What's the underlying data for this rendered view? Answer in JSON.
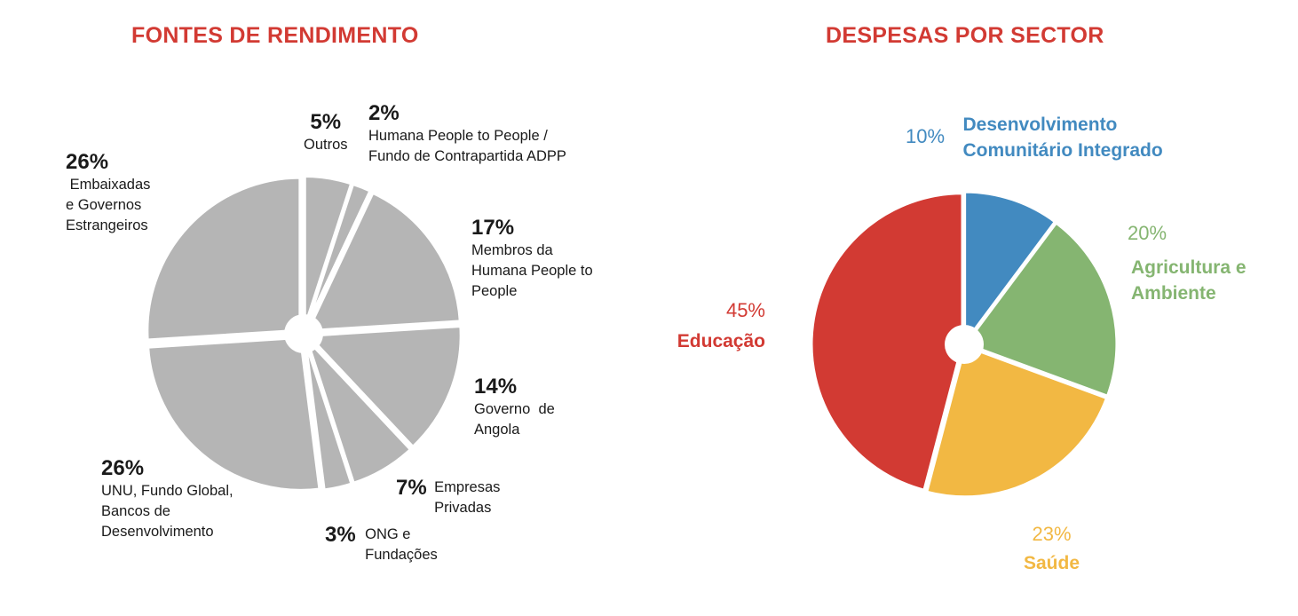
{
  "chart_data": [
    {
      "type": "pie",
      "title": "FONTES DE RENDIMENTO",
      "slices": [
        {
          "label": "Outros",
          "value": 5,
          "value_label": "5%",
          "color": "#b5b5b5"
        },
        {
          "label": "Humana People to People / Fundo de Contrapartida ADPP",
          "value": 2,
          "value_label": "2%",
          "color": "#b5b5b5"
        },
        {
          "label": "Membros da Humana People to People",
          "value": 17,
          "value_label": "17%",
          "color": "#b5b5b5"
        },
        {
          "label": "Governo  de Angola",
          "value": 14,
          "value_label": "14%",
          "color": "#b5b5b5"
        },
        {
          "label": "Empresas Privadas",
          "value": 7,
          "value_label": "7%",
          "color": "#b5b5b5"
        },
        {
          "label": "ONG e Fundações",
          "value": 3,
          "value_label": "3%",
          "color": "#b5b5b5"
        },
        {
          "label": "UNU, Fundo Global, Bancos de Desenvolvimento",
          "value": 26,
          "value_label": "26%",
          "color": "#b5b5b5"
        },
        {
          "label": "Embaixadas e Governos Estrangeiros",
          "value": 26,
          "value_label": "26%",
          "color": "#b5b5b5"
        }
      ]
    },
    {
      "type": "pie",
      "title": "DESPESAS POR SECTOR",
      "slices": [
        {
          "label": "Desenvolvimento Comunitário Integrado",
          "value": 10,
          "value_label": "10%",
          "color": "#428ac0"
        },
        {
          "label": "Agricultura e Ambiente",
          "value": 20,
          "value_label": "20%",
          "color": "#85b571"
        },
        {
          "label": "Saúde",
          "value": 23,
          "value_label": "23%",
          "color": "#f2b843"
        },
        {
          "label": "Educação",
          "value": 45,
          "value_label": "45%",
          "color": "#d23a33"
        }
      ]
    }
  ],
  "left_labels": {
    "outros": {
      "pct": "5%",
      "lines": [
        "Outros"
      ]
    },
    "humana": {
      "pct": "2%",
      "lines": [
        "Humana People to People /",
        "Fundo de Contrapartida ADPP"
      ]
    },
    "membros": {
      "pct": "17%",
      "lines": [
        "Membros da",
        "Humana People to",
        "People"
      ]
    },
    "governo": {
      "pct": "14%",
      "lines": [
        "Governo  de",
        "Angola"
      ]
    },
    "empresas": {
      "pct": "7%",
      "lines": [
        "Empresas",
        "Privadas"
      ]
    },
    "ong": {
      "pct": "3%",
      "lines": [
        "ONG e",
        "Fundações"
      ]
    },
    "unu": {
      "pct": "26%",
      "lines": [
        "UNU, Fundo Global,",
        "Bancos de",
        "Desenvolvimento"
      ]
    },
    "embaixadas": {
      "pct": "26%",
      "lines": [
        " Embaixadas",
        "e Governos",
        "Estrangeiros"
      ]
    }
  },
  "right_labels": {
    "desenvolvimento": {
      "pct": "10%",
      "lines": [
        "Desenvolvimento",
        "Comunitário Integrado"
      ]
    },
    "agricultura": {
      "pct": "20%",
      "lines": [
        "Agricultura e",
        "Ambiente"
      ]
    },
    "saude": {
      "pct": "23%",
      "lines": [
        "Saúde"
      ]
    },
    "educacao": {
      "pct": "45%",
      "lines": [
        "Educação"
      ]
    }
  }
}
